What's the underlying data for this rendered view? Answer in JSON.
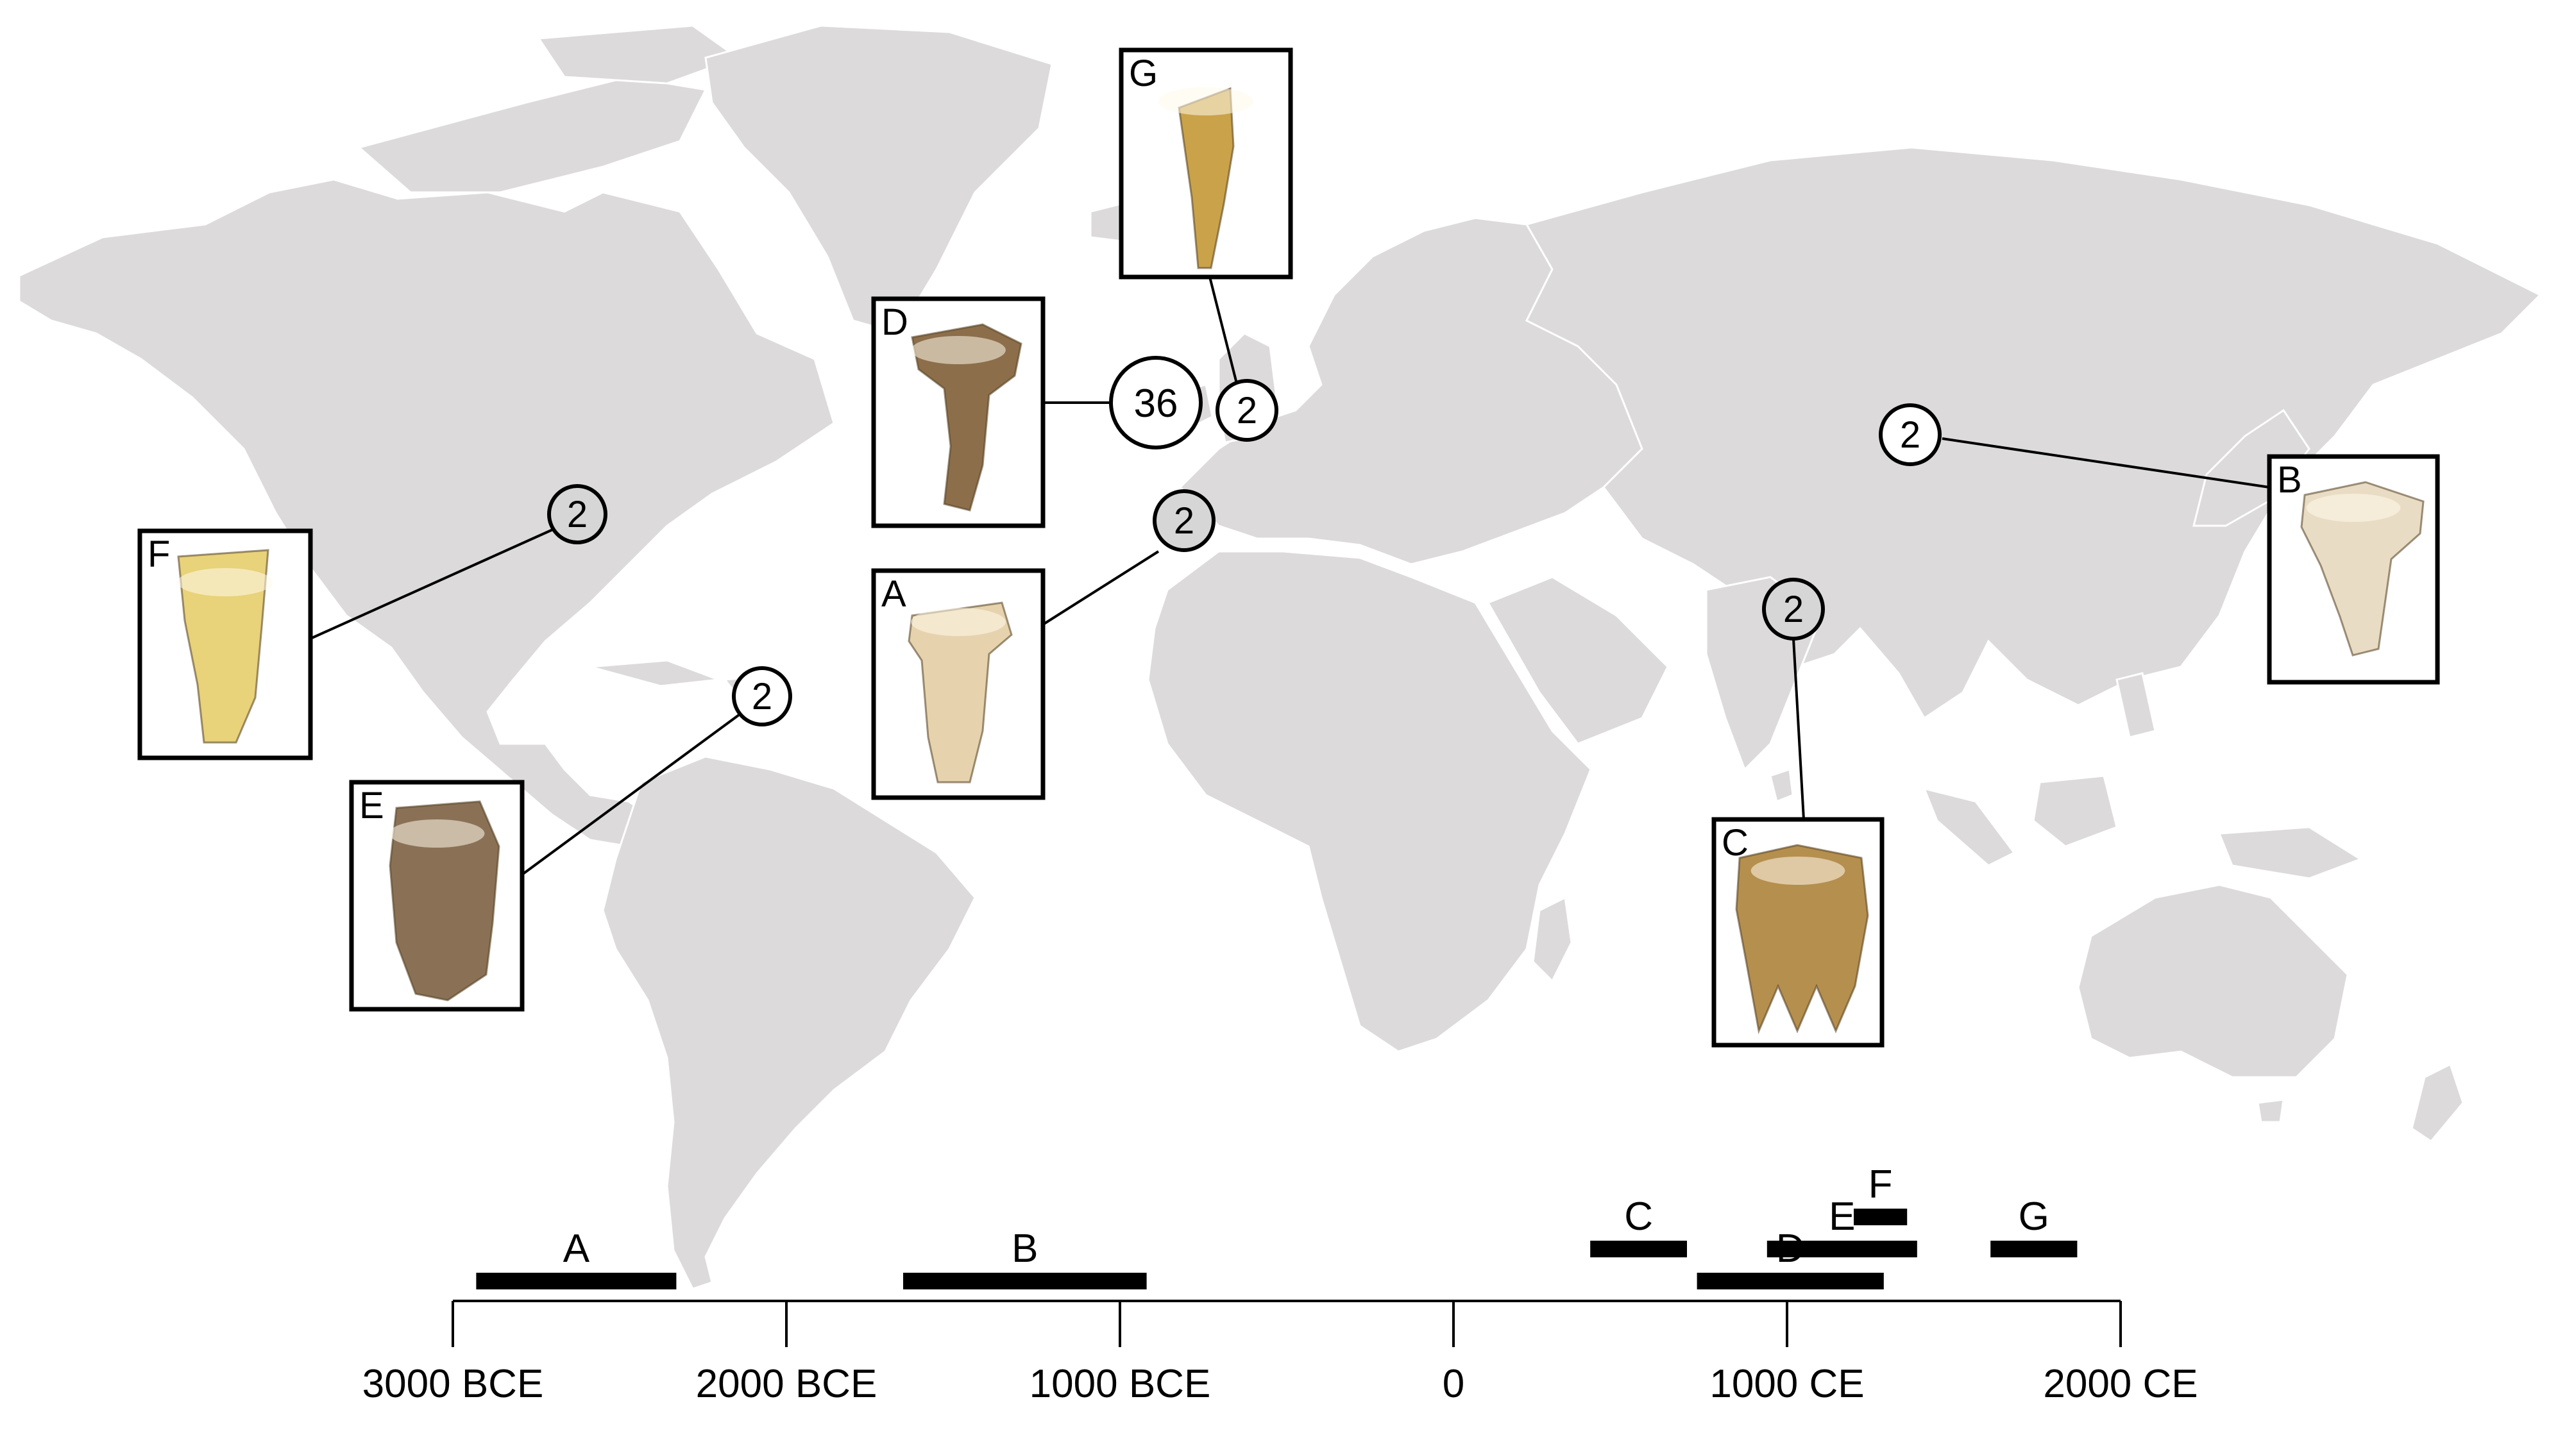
{
  "colors": {
    "land": "#dcdada",
    "background": "#ffffff",
    "ink": "#000000",
    "marker_fill": "#d6d6d6"
  },
  "sites": [
    {
      "id": "north-america",
      "count": "2",
      "specimen": "F"
    },
    {
      "id": "caribbean",
      "count": "2",
      "specimen": "E"
    },
    {
      "id": "british-isles",
      "count": "36",
      "specimen": "D"
    },
    {
      "id": "scandinavia",
      "count": "2",
      "specimen": "G"
    },
    {
      "id": "iberia",
      "count": "2",
      "specimen": "A"
    },
    {
      "id": "mongolia",
      "count": "2",
      "specimen": "B"
    },
    {
      "id": "south-asia",
      "count": "2",
      "specimen": "C"
    }
  ],
  "specimens": [
    {
      "label": "A",
      "color": "#e6d3ae"
    },
    {
      "label": "B",
      "color": "#e9dcc4"
    },
    {
      "label": "C",
      "color": "#b58f4e"
    },
    {
      "label": "D",
      "color": "#8c6e4a"
    },
    {
      "label": "E",
      "color": "#8a7155"
    },
    {
      "label": "F",
      "color": "#e8d27a"
    },
    {
      "label": "G",
      "color": "#c9a24a"
    }
  ],
  "timeline": {
    "ticks": [
      "3000 BCE",
      "2000 BCE",
      "1000 BCE",
      "0",
      "1000 CE",
      "2000 CE"
    ],
    "ranges": [
      {
        "label": "A",
        "start": -2930,
        "end": -2330
      },
      {
        "label": "B",
        "start": -1650,
        "end": -920
      },
      {
        "label": "C",
        "start": 410,
        "end": 700
      },
      {
        "label": "D",
        "start": 730,
        "end": 1290
      },
      {
        "label": "E",
        "start": 940,
        "end": 1390
      },
      {
        "label": "F",
        "start": 1200,
        "end": 1360
      },
      {
        "label": "G",
        "start": 1610,
        "end": 1870
      }
    ]
  }
}
